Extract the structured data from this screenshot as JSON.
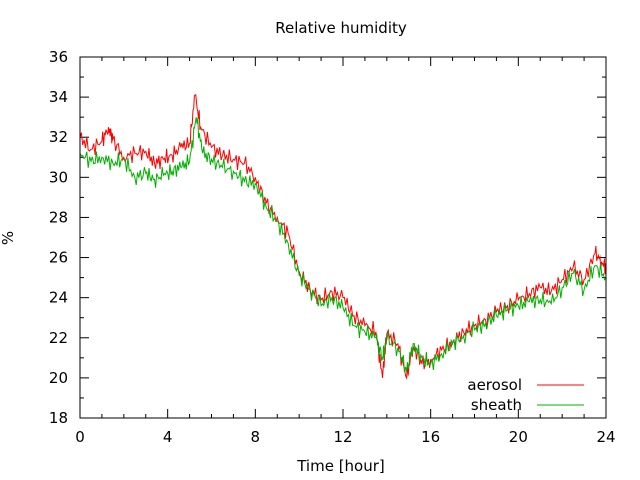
{
  "chart_data": {
    "type": "line",
    "title": "Relative humidity",
    "xlabel": "Time [hour]",
    "ylabel": "%",
    "xlim": [
      0,
      24
    ],
    "ylim": [
      18,
      36
    ],
    "xticks": [
      0,
      4,
      8,
      12,
      16,
      20,
      24
    ],
    "yticks": [
      18,
      20,
      22,
      24,
      26,
      28,
      30,
      32,
      34,
      36
    ],
    "grid": false,
    "legend_position": "bottom-right",
    "series": [
      {
        "name": "aerosol",
        "color": "#ff0000",
        "x": [
          0,
          0.5,
          1.0,
          1.3,
          1.5,
          2.0,
          2.5,
          3.0,
          3.4,
          3.8,
          4.2,
          4.6,
          5.0,
          5.25,
          5.5,
          6.0,
          6.5,
          7.0,
          7.5,
          8.0,
          8.5,
          9.0,
          9.5,
          10.0,
          10.5,
          11.0,
          11.5,
          12.0,
          12.5,
          13.0,
          13.5,
          13.8,
          14.0,
          14.5,
          14.9,
          15.2,
          15.6,
          16.0,
          16.5,
          17.0,
          17.5,
          18.0,
          18.5,
          19.0,
          19.5,
          20.0,
          20.5,
          21.0,
          21.5,
          22.0,
          22.5,
          23.0,
          23.5,
          23.8,
          24.0
        ],
        "y": [
          32.0,
          31.4,
          31.8,
          32.5,
          31.9,
          31.0,
          31.2,
          31.3,
          30.7,
          30.9,
          31.1,
          31.5,
          31.7,
          34.1,
          32.5,
          31.5,
          31.1,
          30.9,
          30.7,
          30.0,
          28.7,
          28.0,
          27.2,
          25.3,
          24.4,
          23.9,
          24.3,
          24.0,
          23.1,
          22.6,
          22.3,
          20.0,
          22.2,
          21.7,
          20.0,
          21.6,
          20.7,
          20.9,
          21.4,
          21.8,
          22.3,
          22.6,
          22.9,
          23.3,
          23.6,
          23.9,
          24.2,
          24.5,
          24.3,
          24.9,
          25.5,
          24.9,
          26.2,
          25.8,
          25.5
        ]
      },
      {
        "name": "sheath",
        "color": "#00b000",
        "x": [
          0,
          0.5,
          1.0,
          1.5,
          2.0,
          2.5,
          3.0,
          3.4,
          3.8,
          4.2,
          4.6,
          5.0,
          5.3,
          5.6,
          6.0,
          6.5,
          7.0,
          7.5,
          8.0,
          8.5,
          9.0,
          9.5,
          10.0,
          10.5,
          11.0,
          11.5,
          12.0,
          12.5,
          13.0,
          13.5,
          13.8,
          14.0,
          14.5,
          14.9,
          15.2,
          15.6,
          16.0,
          16.5,
          17.0,
          17.5,
          18.0,
          18.5,
          19.0,
          19.5,
          20.0,
          20.5,
          21.0,
          21.5,
          22.0,
          22.5,
          23.0,
          23.5,
          24.0
        ],
        "y": [
          31.2,
          30.8,
          31.0,
          30.7,
          30.9,
          30.0,
          30.2,
          29.9,
          30.1,
          30.3,
          30.5,
          30.8,
          33.0,
          31.2,
          30.9,
          30.5,
          30.3,
          29.8,
          29.7,
          28.5,
          27.8,
          26.7,
          25.1,
          24.4,
          23.6,
          24.0,
          23.5,
          22.6,
          22.3,
          22.0,
          21.0,
          21.9,
          21.5,
          20.3,
          21.7,
          21.0,
          20.7,
          21.2,
          21.7,
          22.1,
          22.4,
          22.7,
          23.1,
          23.4,
          23.6,
          23.8,
          23.9,
          23.7,
          24.5,
          25.2,
          24.4,
          25.6,
          25.0
        ]
      }
    ]
  }
}
